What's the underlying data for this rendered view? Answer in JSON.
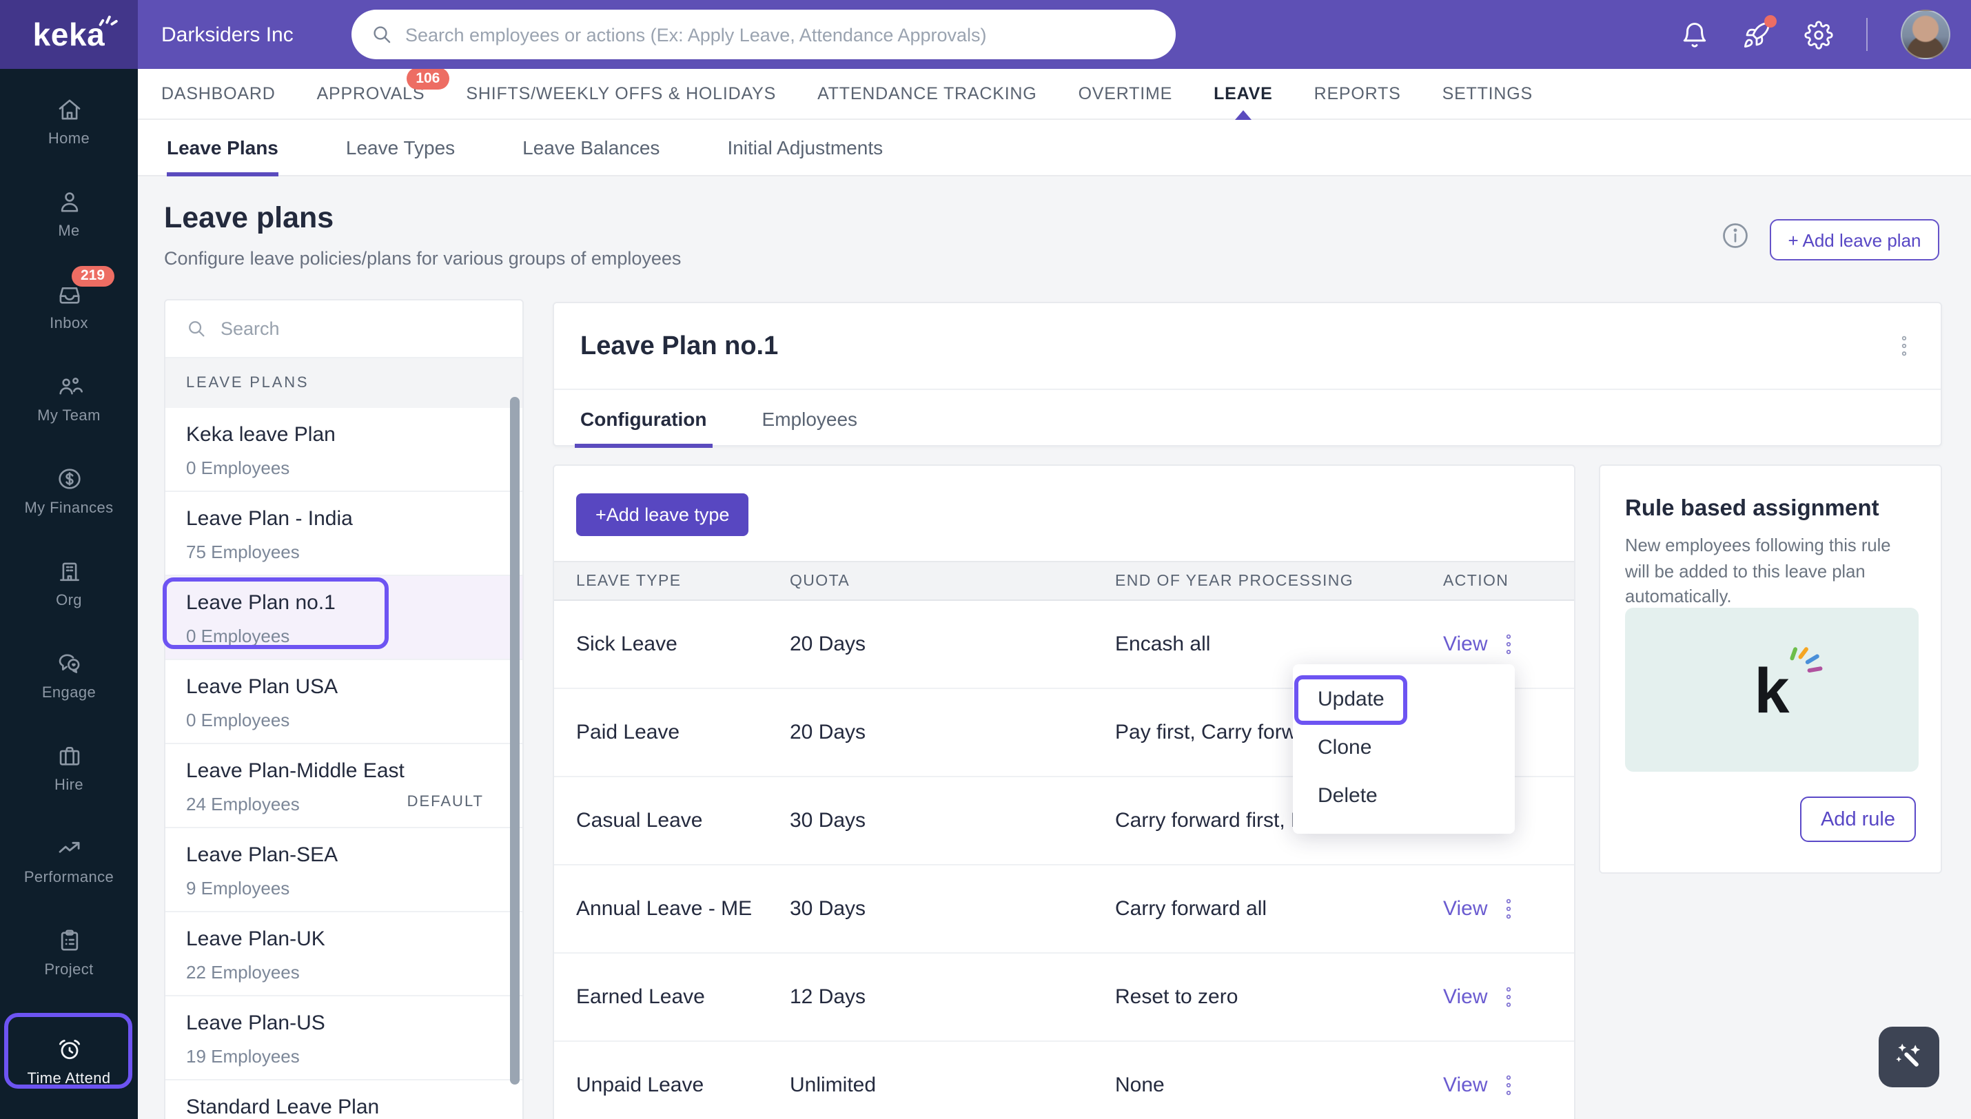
{
  "topbar": {
    "logo_text": "keka",
    "company": "Darksiders Inc",
    "search_placeholder": "Search employees or actions (Ex: Apply Leave, Attendance Approvals)"
  },
  "sidebar": {
    "items": [
      {
        "label": "Home",
        "icon": "home",
        "icon_name": "home-icon"
      },
      {
        "label": "Me",
        "icon": "user",
        "icon_name": "user-icon"
      },
      {
        "label": "Inbox",
        "icon": "inbox",
        "icon_name": "inbox-icon",
        "badge": "219"
      },
      {
        "label": "My Team",
        "icon": "team",
        "icon_name": "team-icon"
      },
      {
        "label": "My Finances",
        "icon": "finances",
        "icon_name": "dollar-icon"
      },
      {
        "label": "Org",
        "icon": "org",
        "icon_name": "building-icon"
      },
      {
        "label": "Engage",
        "icon": "engage",
        "icon_name": "chat-heart-icon"
      },
      {
        "label": "Hire",
        "icon": "hire",
        "icon_name": "briefcase-icon"
      },
      {
        "label": "Performance",
        "icon": "performance",
        "icon_name": "trend-up-icon"
      },
      {
        "label": "Project",
        "icon": "project",
        "icon_name": "clipboard-icon"
      },
      {
        "label": "Time Attend",
        "icon": "clock",
        "icon_name": "alarm-clock-icon",
        "active": true
      }
    ]
  },
  "nav": {
    "tabs": [
      {
        "label": "DASHBOARD"
      },
      {
        "label": "APPROVALS",
        "badge": "106"
      },
      {
        "label": "SHIFTS/WEEKLY OFFS & HOLIDAYS"
      },
      {
        "label": "ATTENDANCE TRACKING"
      },
      {
        "label": "OVERTIME"
      },
      {
        "label": "LEAVE",
        "active": true
      },
      {
        "label": "REPORTS"
      },
      {
        "label": "SETTINGS"
      }
    ]
  },
  "subnav": {
    "tabs": [
      {
        "label": "Leave Plans",
        "active": true
      },
      {
        "label": "Leave Types"
      },
      {
        "label": "Leave Balances"
      },
      {
        "label": "Initial Adjustments"
      }
    ]
  },
  "page": {
    "title": "Leave plans",
    "subtitle": "Configure leave policies/plans for various groups of employees",
    "add_button": "+ Add leave plan"
  },
  "plans_panel": {
    "search_placeholder": "Search",
    "section_label": "LEAVE PLANS",
    "items": [
      {
        "name": "Keka leave Plan",
        "employees": "0 Employees"
      },
      {
        "name": "Leave Plan - India",
        "employees": "75 Employees"
      },
      {
        "name": "Leave Plan no.1",
        "employees": "0 Employees",
        "selected": true
      },
      {
        "name": "Leave Plan USA",
        "employees": "0 Employees"
      },
      {
        "name": "Leave Plan-Middle East",
        "employees": "24 Employees",
        "badge": "DEFAULT"
      },
      {
        "name": "Leave Plan-SEA",
        "employees": "9 Employees"
      },
      {
        "name": "Leave Plan-UK",
        "employees": "22 Employees"
      },
      {
        "name": "Leave Plan-US",
        "employees": "19 Employees"
      },
      {
        "name": "Standard Leave Plan",
        "employees": ""
      }
    ]
  },
  "plan_detail": {
    "title": "Leave Plan no.1",
    "tabs": [
      {
        "label": "Configuration",
        "active": true
      },
      {
        "label": "Employees"
      }
    ],
    "add_leave_type_button": "+Add leave type",
    "table": {
      "columns": [
        "LEAVE TYPE",
        "QUOTA",
        "END OF YEAR PROCESSING",
        "ACTION"
      ],
      "view_label": "View",
      "rows": [
        {
          "leave_type": "Sick Leave",
          "quota": "20 Days",
          "eoy": "Encash all"
        },
        {
          "leave_type": "Paid Leave",
          "quota": "20 Days",
          "eoy": "Pay first, Carry forward"
        },
        {
          "leave_type": "Casual Leave",
          "quota": "30 Days",
          "eoy": "Carry forward first, Pay"
        },
        {
          "leave_type": "Annual Leave - ME",
          "quota": "30 Days",
          "eoy": "Carry forward all"
        },
        {
          "leave_type": "Earned Leave",
          "quota": "12 Days",
          "eoy": "Reset to zero"
        },
        {
          "leave_type": "Unpaid Leave",
          "quota": "Unlimited",
          "eoy": "None"
        }
      ]
    }
  },
  "context_menu": {
    "items": [
      {
        "label": "Update",
        "annotated": true
      },
      {
        "label": "Clone"
      },
      {
        "label": "Delete"
      }
    ]
  },
  "rule_panel": {
    "title": "Rule based assignment",
    "description": "New employees following this rule will be added to this leave plan automatically.",
    "logo_text": "k",
    "button": "Add rule"
  },
  "colors": {
    "brand_purple": "#5E50B5",
    "logo_purple": "#42368A",
    "sidebar_navy": "#0E1E2B",
    "accent_purple": "#5847C1",
    "annotation_purple": "#6D54F2",
    "badge_red": "#ED6D63",
    "teal_tile": "#E4F0EE",
    "wand_slate": "#3D4454"
  }
}
